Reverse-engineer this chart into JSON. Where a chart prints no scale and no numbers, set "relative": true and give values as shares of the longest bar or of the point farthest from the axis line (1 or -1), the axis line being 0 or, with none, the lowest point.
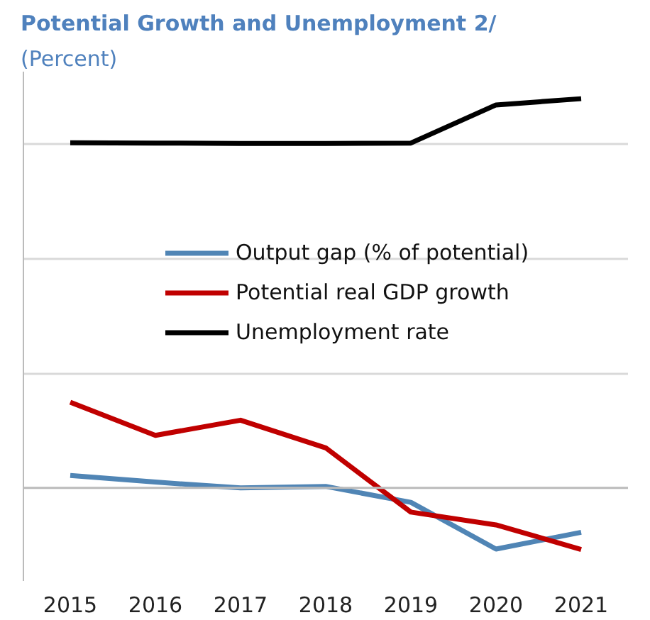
{
  "chart_data": {
    "type": "line",
    "title": "Potential Growth  and Unemployment 2/",
    "subtitle": "(Percent)",
    "relative": true,
    "grid": "y",
    "legend": "right",
    "categories": [
      "2015",
      "2016",
      "2017",
      "2018",
      "2019",
      "2020",
      "2021"
    ],
    "series": [
      {
        "name": "Output gap (% of potential)",
        "color": "#5085b5",
        "values": [
          0.032,
          0.015,
          0,
          0.004,
          -0.037,
          -0.157,
          -0.114
        ]
      },
      {
        "name": "Potential real GDP growth",
        "color": "#c00000",
        "values": [
          0.22,
          0.135,
          0.174,
          0.103,
          -0.062,
          -0.095,
          -0.158
        ]
      },
      {
        "name": "Unemployment rate",
        "color": "#000000",
        "values": [
          0.887,
          0.886,
          0.885,
          0.885,
          0.886,
          0.984,
          1
        ]
      }
    ]
  }
}
